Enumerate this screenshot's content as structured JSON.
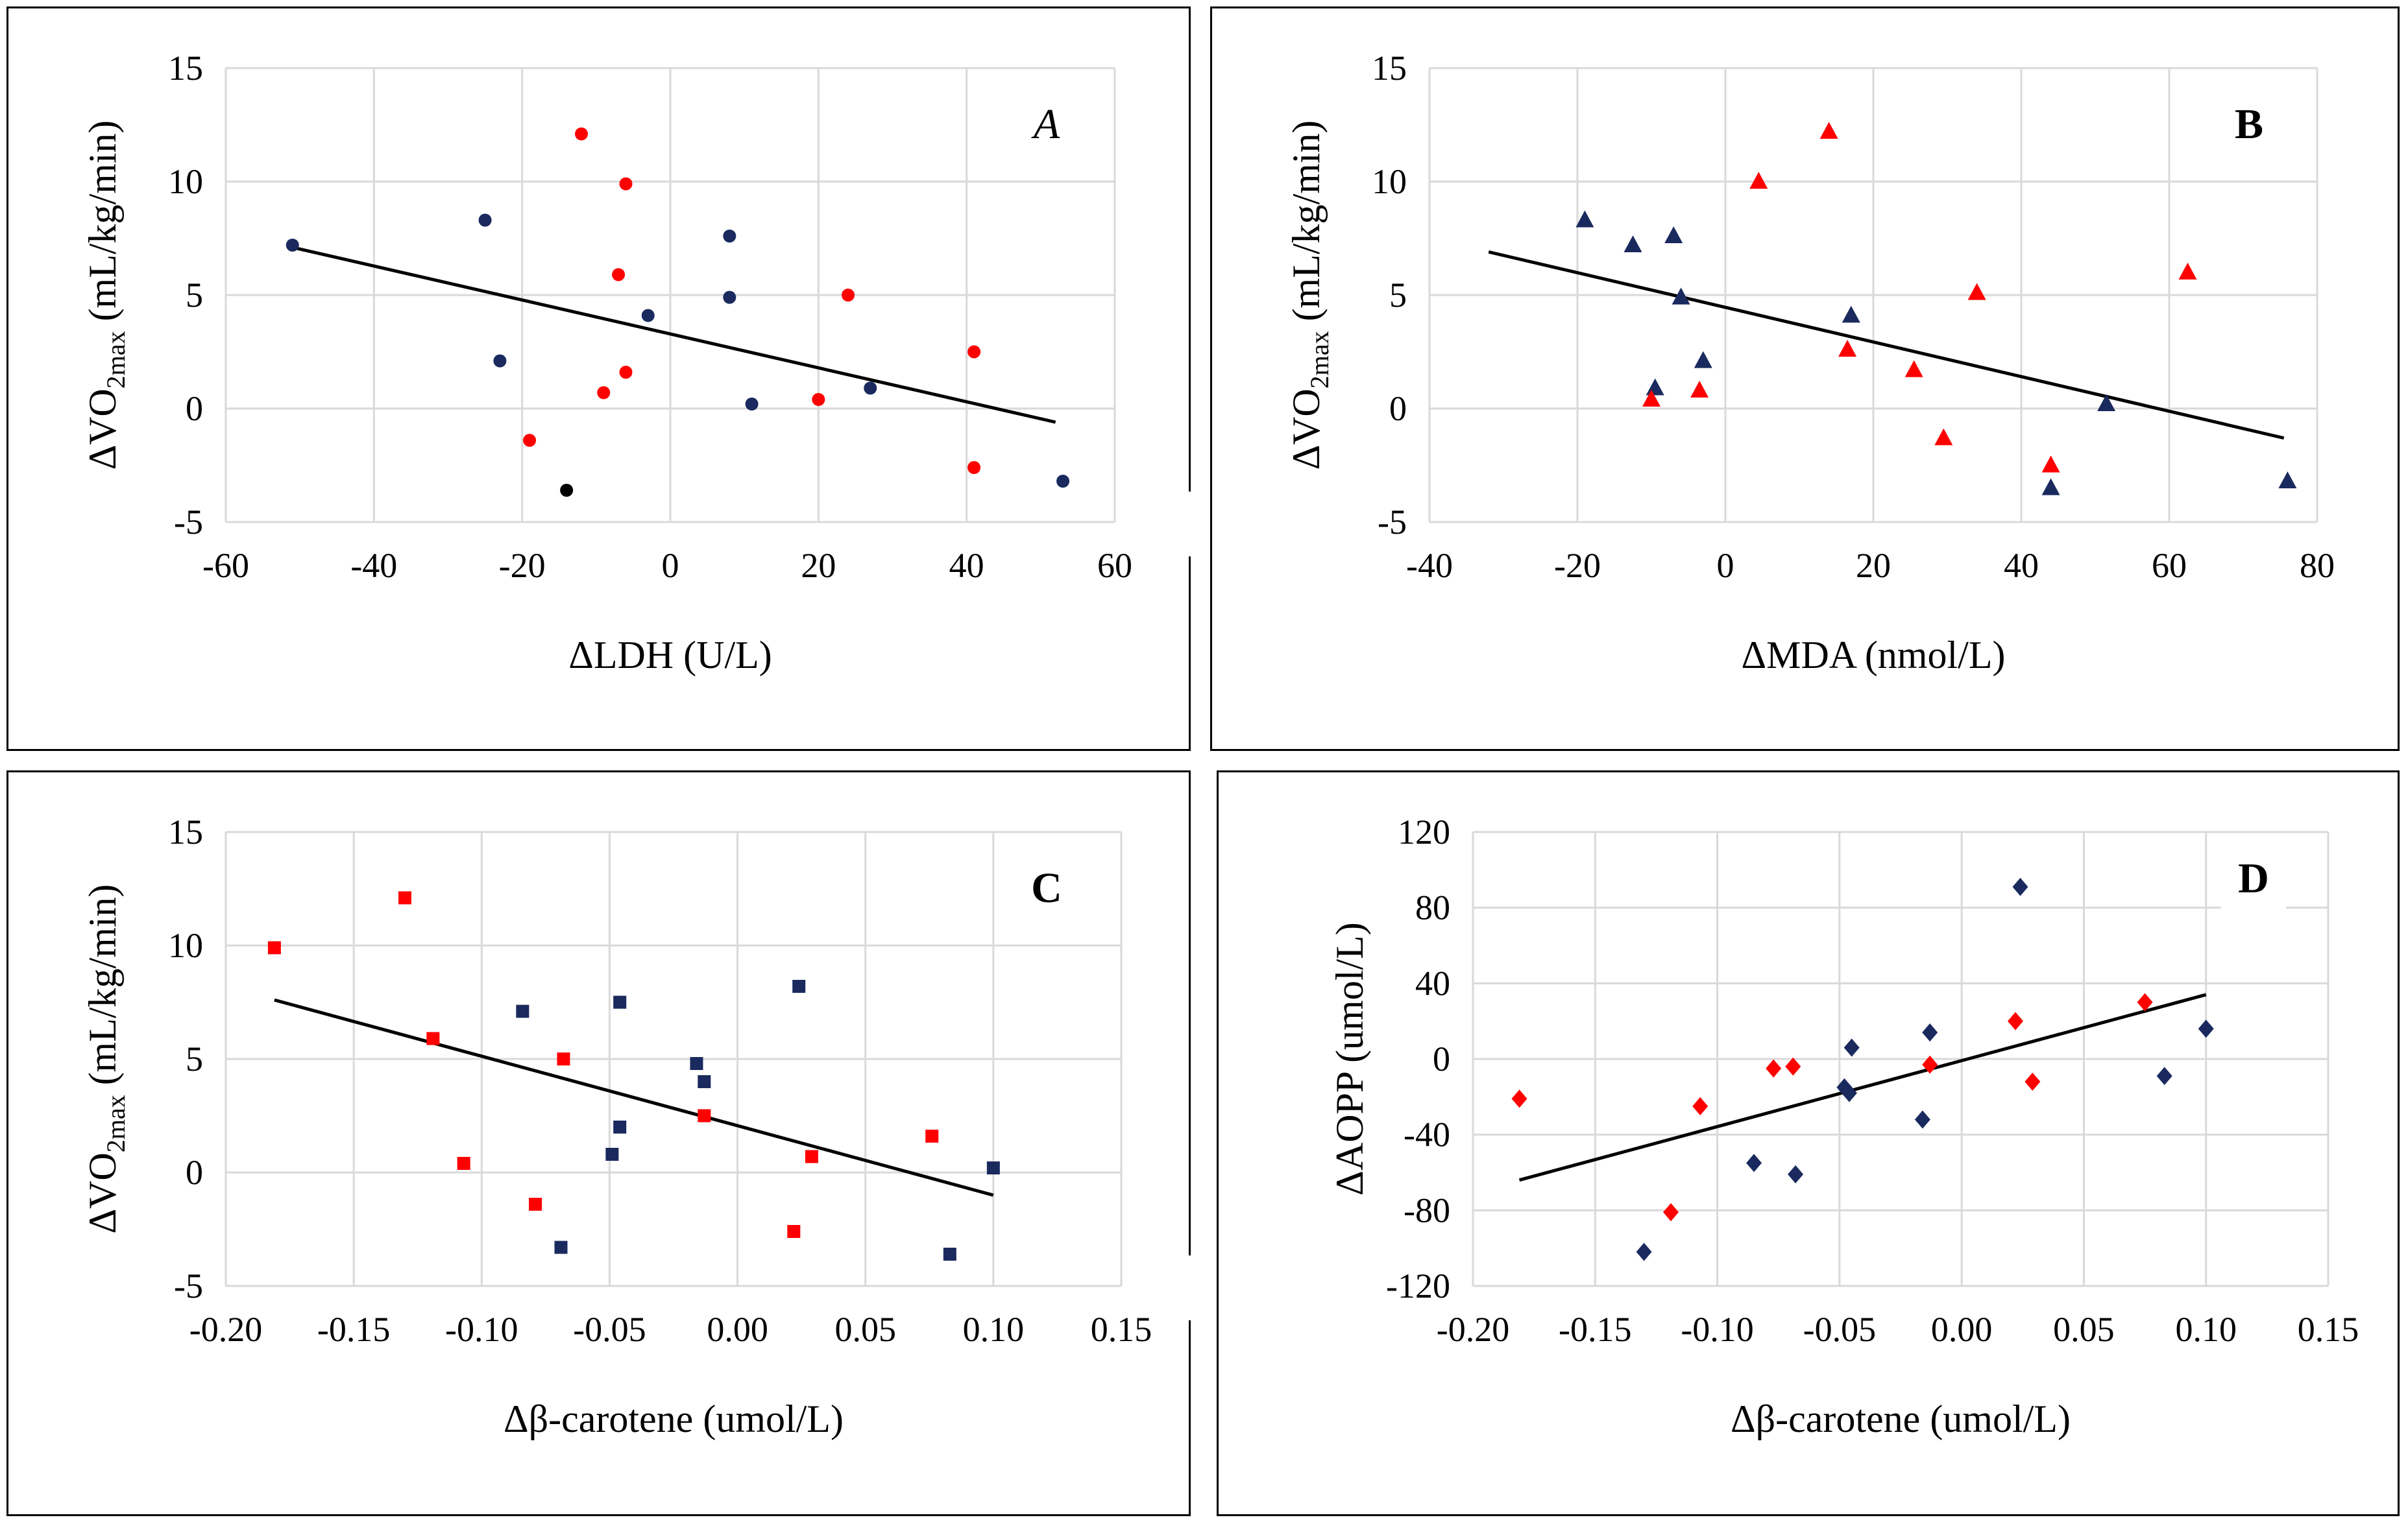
{
  "chart_data": [
    {
      "type": "scatter",
      "panel_label": "A",
      "xlabel": "ΔLDH (U/L)",
      "ylabel": {
        "prefix": "ΔVO",
        "sub": "2max",
        "suffix": " (mL/kg/min)"
      },
      "xlim": [
        -60,
        60
      ],
      "ylim": [
        -5,
        15
      ],
      "xticks": [
        "-60",
        "-40",
        "-20",
        "0",
        "20",
        "40",
        "60"
      ],
      "yticks": [
        "-5",
        "0",
        "5",
        "10",
        "15"
      ],
      "grid": true,
      "marker": "circle",
      "series": [
        {
          "color": "#1a2a5e",
          "points": [
            [
              -51,
              7.2
            ],
            [
              -25,
              8.3
            ],
            [
              -23,
              2.1
            ],
            [
              -3,
              4.1
            ],
            [
              8,
              7.6
            ],
            [
              8,
              4.9
            ],
            [
              11,
              0.2
            ],
            [
              27,
              0.9
            ],
            [
              53,
              -3.2
            ]
          ]
        },
        {
          "color": "#ff0000",
          "points": [
            [
              -12,
              12.1
            ],
            [
              -6,
              9.9
            ],
            [
              -7,
              5.9
            ],
            [
              -6,
              1.6
            ],
            [
              -9,
              0.7
            ],
            [
              -19,
              -1.4
            ],
            [
              24,
              5.0
            ],
            [
              20,
              0.4
            ],
            [
              41,
              2.5
            ],
            [
              41,
              -2.6
            ]
          ]
        },
        {
          "color": "#000000",
          "points": [
            [
              -14,
              -3.6
            ]
          ]
        }
      ],
      "trendline": [
        [
          -51,
          7.1
        ],
        [
          52,
          -0.6
        ]
      ]
    },
    {
      "type": "scatter",
      "panel_label": "B",
      "xlabel": "ΔMDA (nmol/L)",
      "ylabel": {
        "prefix": "ΔVO",
        "sub": "2max",
        "suffix": " (mL/kg/min)"
      },
      "xlim": [
        -40,
        80
      ],
      "ylim": [
        -5,
        15
      ],
      "xticks": [
        "-40",
        "-20",
        "0",
        "20",
        "40",
        "60",
        "80"
      ],
      "yticks": [
        "-5",
        "0",
        "5",
        "10",
        "15"
      ],
      "grid": true,
      "marker": "triangle",
      "series": [
        {
          "color": "#1a2a5e",
          "points": [
            [
              -19,
              8.3
            ],
            [
              -12.5,
              7.2
            ],
            [
              -7,
              7.6
            ],
            [
              -6,
              4.9
            ],
            [
              -9.5,
              0.9
            ],
            [
              -3,
              2.1
            ],
            [
              17,
              4.1
            ],
            [
              44,
              -3.5
            ],
            [
              51.5,
              0.2
            ],
            [
              76,
              -3.2
            ]
          ]
        },
        {
          "color": "#ff0000",
          "points": [
            [
              4.5,
              10.0
            ],
            [
              14,
              12.2
            ],
            [
              16.5,
              2.6
            ],
            [
              25.5,
              1.7
            ],
            [
              34,
              5.1
            ],
            [
              29.5,
              -1.3
            ],
            [
              44,
              -2.5
            ],
            [
              62.5,
              6.0
            ],
            [
              -10,
              0.4
            ],
            [
              -3.5,
              0.8
            ]
          ]
        }
      ],
      "trendline": [
        [
          -32,
          6.9
        ],
        [
          75.5,
          -1.3
        ]
      ]
    },
    {
      "type": "scatter",
      "panel_label": "C",
      "xlabel": "Δβ-carotene (umol/L)",
      "ylabel": {
        "prefix": "ΔVO",
        "sub": "2max",
        "suffix": " (mL/kg/min)"
      },
      "xlim": [
        -0.2,
        0.15
      ],
      "ylim": [
        -5,
        15
      ],
      "xticks": [
        "-0.20",
        "-0.15",
        "-0.10",
        "-0.05",
        "0.00",
        "0.05",
        "0.10",
        "0.15"
      ],
      "yticks": [
        "-5",
        "0",
        "5",
        "10",
        "15"
      ],
      "grid": true,
      "marker": "square",
      "series": [
        {
          "color": "#1a2a5e",
          "points": [
            [
              -0.084,
              7.1
            ],
            [
              -0.046,
              7.5
            ],
            [
              -0.046,
              2.0
            ],
            [
              -0.049,
              0.8
            ],
            [
              -0.069,
              -3.3
            ],
            [
              -0.016,
              4.8
            ],
            [
              -0.013,
              4.0
            ],
            [
              0.024,
              8.2
            ],
            [
              0.083,
              -3.6
            ],
            [
              0.1,
              0.2
            ]
          ]
        },
        {
          "color": "#ff0000",
          "points": [
            [
              -0.181,
              9.9
            ],
            [
              -0.13,
              12.1
            ],
            [
              -0.119,
              5.9
            ],
            [
              -0.107,
              0.4
            ],
            [
              -0.079,
              -1.4
            ],
            [
              -0.068,
              5.0
            ],
            [
              -0.013,
              2.5
            ],
            [
              0.022,
              -2.6
            ],
            [
              0.029,
              0.7
            ],
            [
              0.076,
              1.6
            ]
          ]
        }
      ],
      "trendline": [
        [
          -0.181,
          7.6
        ],
        [
          0.1,
          -1.0
        ]
      ]
    },
    {
      "type": "scatter",
      "panel_label": "D",
      "xlabel": "Δβ-carotene (umol/L)",
      "ylabel": {
        "prefix": "ΔAOPP (umol/L)",
        "sub": "",
        "suffix": ""
      },
      "xlim": [
        -0.2,
        0.15
      ],
      "ylim": [
        -120,
        120
      ],
      "xticks": [
        "-0.20",
        "-0.15",
        "-0.10",
        "-0.05",
        "0.00",
        "0.05",
        "0.10",
        "0.15"
      ],
      "yticks": [
        "-120",
        "-80",
        "-40",
        "0",
        "40",
        "80",
        "120"
      ],
      "grid": true,
      "marker": "diamond",
      "series": [
        {
          "color": "#1a2a5e",
          "points": [
            [
              -0.13,
              -102
            ],
            [
              -0.085,
              -55
            ],
            [
              -0.068,
              -61
            ],
            [
              -0.045,
              6
            ],
            [
              -0.048,
              -15
            ],
            [
              -0.046,
              -18
            ],
            [
              -0.016,
              -32
            ],
            [
              -0.013,
              14
            ],
            [
              0.024,
              91
            ],
            [
              0.083,
              -9
            ],
            [
              0.1,
              16
            ]
          ]
        },
        {
          "color": "#ff0000",
          "points": [
            [
              -0.181,
              -21
            ],
            [
              -0.119,
              -81
            ],
            [
              -0.107,
              -25
            ],
            [
              -0.077,
              -5
            ],
            [
              -0.069,
              -4
            ],
            [
              -0.013,
              -3
            ],
            [
              0.022,
              20
            ],
            [
              0.029,
              -12
            ],
            [
              0.075,
              30
            ]
          ]
        }
      ],
      "trendline": [
        [
          -0.181,
          -64
        ],
        [
          0.1,
          34
        ]
      ]
    }
  ]
}
